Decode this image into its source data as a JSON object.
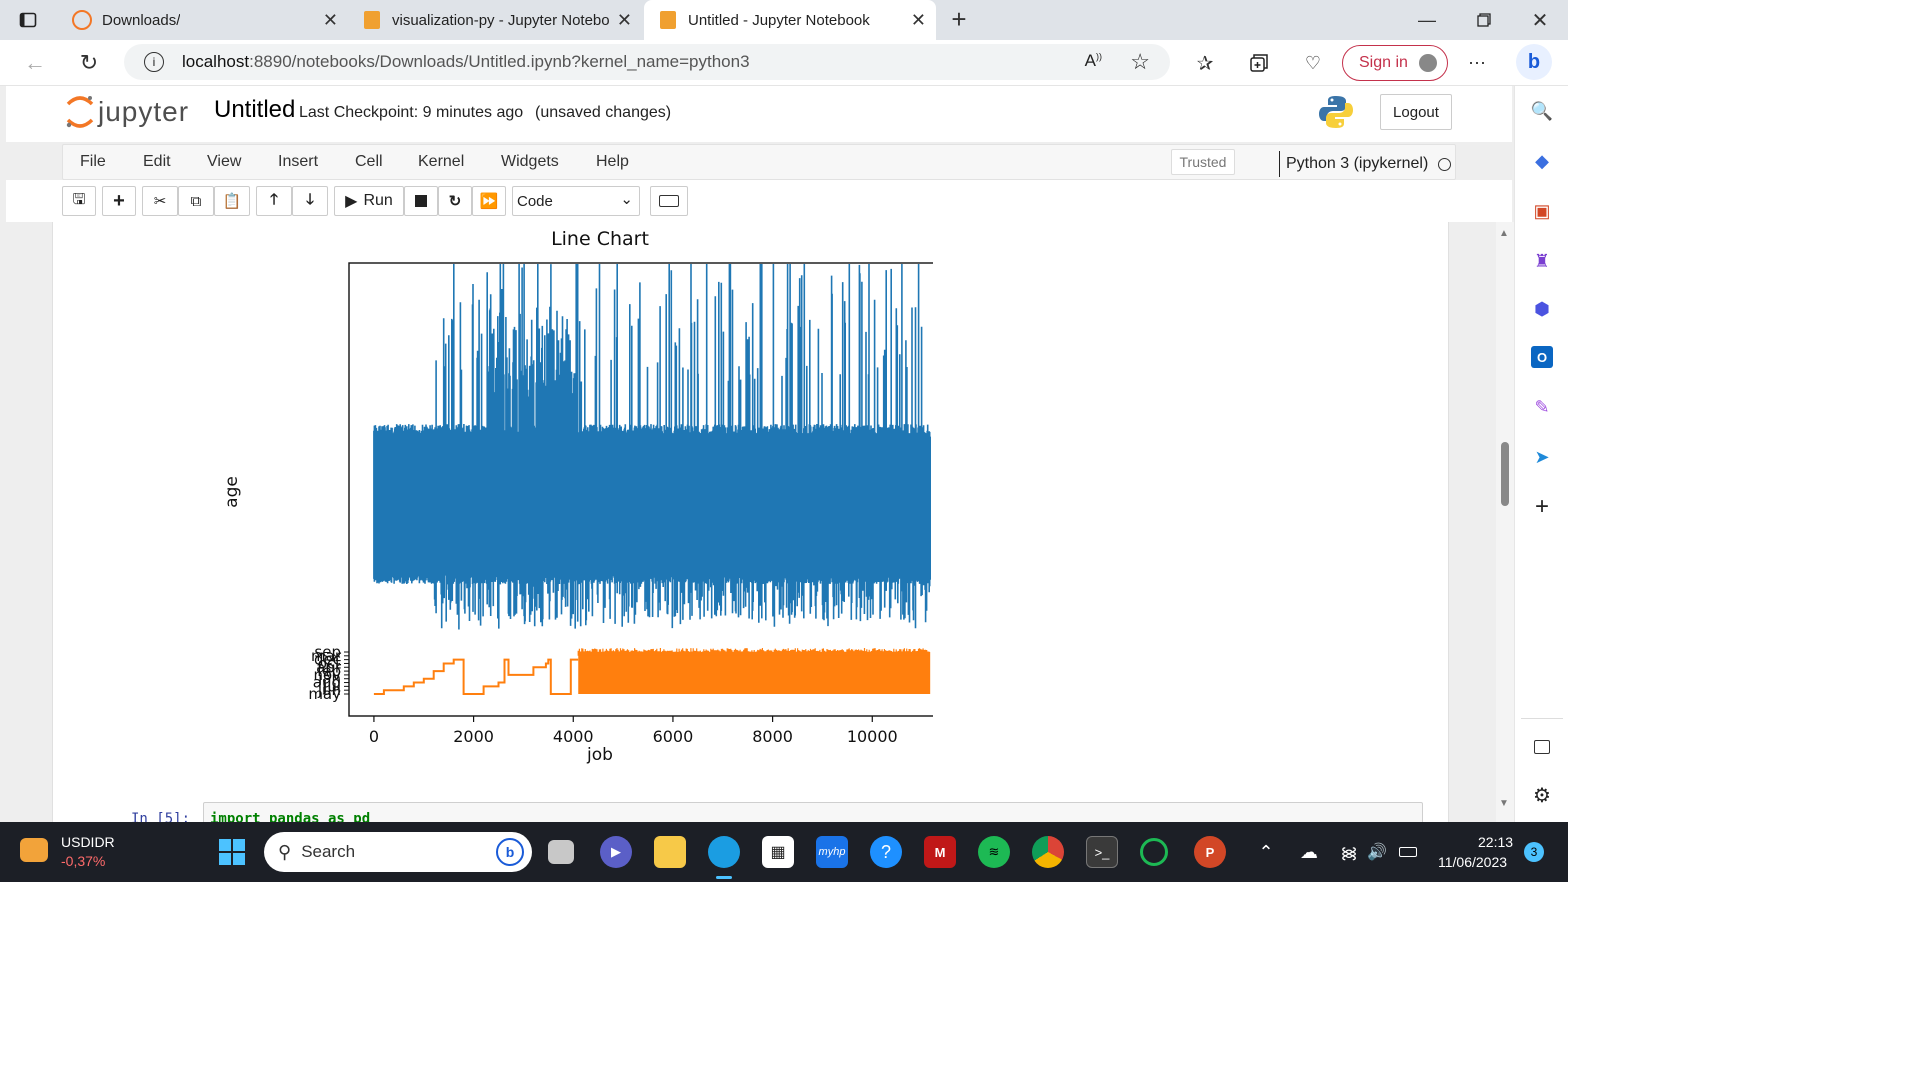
{
  "browser": {
    "tabs": [
      {
        "title": "Downloads/",
        "active": false
      },
      {
        "title": "visualization-py - Jupyter Notebo",
        "active": false
      },
      {
        "title": "Untitled - Jupyter Notebook",
        "active": true
      }
    ],
    "url_host": "localhost",
    "url_path": ":8890/notebooks/Downloads/Untitled.ipynb?kernel_name=python3",
    "sign_in_label": "Sign in"
  },
  "jupyter": {
    "logo_text": "jupyter",
    "notebook_name": "Untitled",
    "checkpoint": "Last Checkpoint: 9 minutes ago",
    "unsaved": "(unsaved changes)",
    "logout_label": "Logout",
    "menu": [
      "File",
      "Edit",
      "View",
      "Insert",
      "Cell",
      "Kernel",
      "Widgets",
      "Help"
    ],
    "trusted_label": "Trusted",
    "kernel_label": "Python 3 (ipykernel)",
    "run_label": "Run",
    "cell_type": "Code",
    "next_cell_prompt": "In [5]:",
    "next_cell_code": "import pandas as pd"
  },
  "chart_data": {
    "type": "line",
    "title": "Line Chart",
    "xlabel": "job",
    "ylabel": "age",
    "xlim": [
      -500,
      11700
    ],
    "xticks": [
      "0",
      "2000",
      "4000",
      "6000",
      "8000",
      "10000"
    ],
    "xtick_values": [
      0,
      2000,
      4000,
      6000,
      8000,
      10000
    ],
    "month_tick_labels": [
      "sep",
      "mar",
      "dec",
      "oct",
      "apr",
      "feb",
      "nov",
      "jan",
      "aug",
      "jul",
      "jun",
      "may"
    ],
    "series": [
      {
        "color": "#1f77b4",
        "x_range": [
          0,
          11162
        ],
        "band_low_approx": 25,
        "band_high_approx": 60,
        "spikes_max_approx": 95
      },
      {
        "color": "#ff7f0e",
        "x_range": [
          0,
          11162
        ],
        "step_points": [
          [
            0,
            0
          ],
          [
            200,
            1
          ],
          [
            400,
            1
          ],
          [
            600,
            2
          ],
          [
            800,
            3
          ],
          [
            1000,
            4
          ],
          [
            1200,
            6
          ],
          [
            1400,
            8
          ],
          [
            1600,
            9
          ],
          [
            1750,
            9
          ],
          [
            1800,
            0
          ],
          [
            2200,
            2
          ],
          [
            2500,
            3
          ],
          [
            2620,
            9
          ],
          [
            2700,
            5
          ],
          [
            2900,
            5
          ],
          [
            3200,
            7
          ],
          [
            3450,
            8
          ],
          [
            3500,
            9
          ],
          [
            3550,
            0
          ],
          [
            3900,
            0
          ],
          [
            3950,
            9
          ],
          [
            4100,
            9
          ]
        ],
        "dense_from": 4100,
        "dense_range": [
          0,
          11
        ]
      }
    ]
  },
  "taskbar": {
    "ticker": "USDIDR",
    "ticker_change": "-0,37%",
    "search_placeholder": "Search",
    "time": "22:13",
    "date": "11/06/2023",
    "notification_count": "3"
  }
}
